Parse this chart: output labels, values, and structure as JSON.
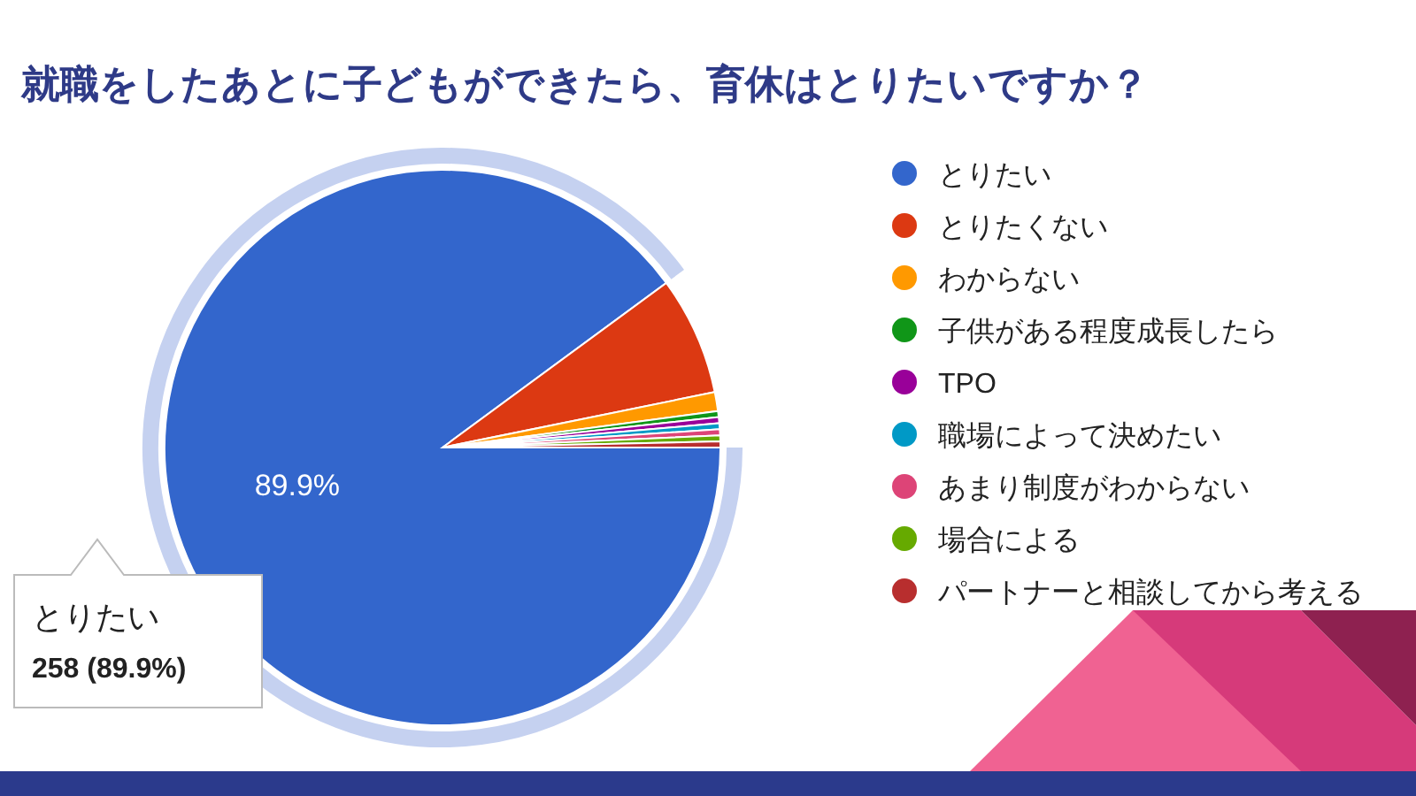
{
  "chart_data": {
    "type": "pie",
    "title": "就職をしたあとに子どもができたら、育休はとりたいですか？",
    "categories": [
      "とりたい",
      "とりたくない",
      "わからない",
      "子供がある程度成長したら",
      "TPO",
      "職場によって決めたい",
      "あまり制度がわからない",
      "場合による",
      "パートナーと相談してから考える"
    ],
    "values": [
      89.9,
      6.9,
      1.1,
      0.35,
      0.35,
      0.35,
      0.35,
      0.35,
      0.35
    ],
    "colors": [
      "#3366cc",
      "#dc3912",
      "#ff9900",
      "#109618",
      "#990099",
      "#0099c6",
      "#dd4477",
      "#66aa00",
      "#b82e2e"
    ],
    "value_labels": [
      "89.9%",
      null,
      null,
      null,
      null,
      null,
      null,
      null,
      null
    ],
    "annotations": [
      "とりたい",
      "258 (89.9%)"
    ],
    "legend": "right"
  }
}
